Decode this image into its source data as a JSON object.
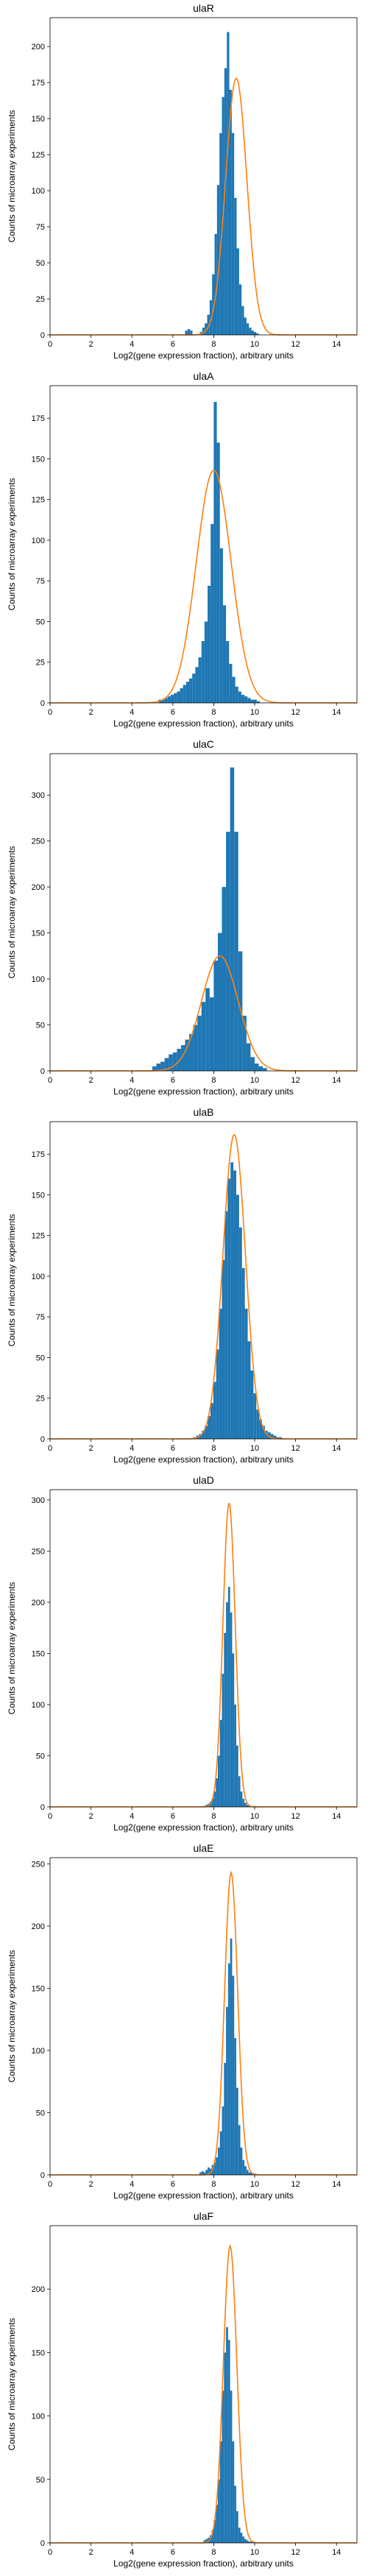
{
  "figure": {
    "bar_color": "#1f77b4",
    "fit_color": "#ff7f0e"
  },
  "chart_data": [
    {
      "type": "histogram",
      "title": "ulaR",
      "xlabel": "Log2(gene expression fraction), arbitrary units",
      "ylabel": "Counts of microarray experiments",
      "xlim": [
        0,
        15
      ],
      "ylim": [
        0,
        220
      ],
      "xticks": [
        0,
        2,
        4,
        6,
        8,
        10,
        12,
        14
      ],
      "yticks": [
        0,
        25,
        50,
        75,
        100,
        125,
        150,
        175,
        200
      ],
      "bins": {
        "start": 6.6,
        "width": 0.12,
        "counts": [
          3,
          4,
          3,
          0,
          0,
          0,
          2,
          5,
          8,
          14,
          24,
          42,
          70,
          104,
          140,
          165,
          185,
          210,
          170,
          140,
          95,
          60,
          35,
          20,
          12,
          8,
          5,
          3,
          2,
          1
        ]
      },
      "fit": {
        "mean": 9.1,
        "sd": 0.52,
        "peak": 178
      }
    },
    {
      "type": "histogram",
      "title": "ulaA",
      "xlabel": "Log2(gene expression fraction), arbitrary units",
      "ylabel": "Counts of microarray experiments",
      "xlim": [
        0,
        15
      ],
      "ylim": [
        0,
        195
      ],
      "xticks": [
        0,
        2,
        4,
        6,
        8,
        10,
        12,
        14
      ],
      "yticks": [
        0,
        25,
        50,
        75,
        100,
        125,
        150,
        175
      ],
      "bins": {
        "start": 5.3,
        "width": 0.15,
        "counts": [
          2,
          2,
          3,
          4,
          5,
          6,
          7,
          9,
          11,
          13,
          15,
          18,
          22,
          28,
          38,
          50,
          72,
          110,
          185,
          160,
          95,
          60,
          38,
          24,
          16,
          10,
          7,
          5,
          4,
          3,
          2,
          2,
          1
        ]
      },
      "fit": {
        "mean": 8.0,
        "sd": 0.85,
        "peak": 143
      }
    },
    {
      "type": "histogram",
      "title": "ulaC",
      "xlabel": "Log2(gene expression fraction), arbitrary units",
      "ylabel": "Counts of microarray experiments",
      "xlim": [
        0,
        15
      ],
      "ylim": [
        0,
        345
      ],
      "xticks": [
        0,
        2,
        4,
        6,
        8,
        10,
        12,
        14
      ],
      "yticks": [
        0,
        50,
        100,
        150,
        200,
        250,
        300
      ],
      "bins": {
        "start": 5.0,
        "width": 0.2,
        "counts": [
          5,
          8,
          10,
          14,
          18,
          20,
          24,
          28,
          34,
          40,
          50,
          60,
          75,
          90,
          80,
          120,
          150,
          200,
          260,
          330,
          260,
          130,
          60,
          30,
          15,
          8,
          5,
          3
        ]
      },
      "fit": {
        "mean": 8.3,
        "sd": 0.9,
        "peak": 125
      }
    },
    {
      "type": "histogram",
      "title": "ulaB",
      "xlabel": "Log2(gene expression fraction), arbitrary units",
      "ylabel": "Counts of microarray experiments",
      "xlim": [
        0,
        15
      ],
      "ylim": [
        0,
        195
      ],
      "xticks": [
        0,
        2,
        4,
        6,
        8,
        10,
        12,
        14
      ],
      "yticks": [
        0,
        25,
        50,
        75,
        100,
        125,
        150,
        175
      ],
      "bins": {
        "start": 7.0,
        "width": 0.14,
        "counts": [
          1,
          2,
          3,
          5,
          8,
          14,
          22,
          35,
          55,
          80,
          110,
          140,
          160,
          170,
          165,
          150,
          130,
          105,
          80,
          60,
          42,
          28,
          18,
          12,
          8,
          5,
          4,
          3,
          2,
          1,
          1
        ]
      },
      "fit": {
        "mean": 9.0,
        "sd": 0.55,
        "peak": 187
      }
    },
    {
      "type": "histogram",
      "title": "ulaD",
      "xlabel": "Log2(gene expression fraction), arbitrary units",
      "ylabel": "Counts of microarray experiments",
      "xlim": [
        0,
        15
      ],
      "ylim": [
        0,
        310
      ],
      "xticks": [
        0,
        2,
        4,
        6,
        8,
        10,
        12,
        14
      ],
      "yticks": [
        0,
        50,
        100,
        150,
        200,
        250,
        300
      ],
      "bins": {
        "start": 7.5,
        "width": 0.1,
        "counts": [
          1,
          2,
          3,
          5,
          8,
          15,
          28,
          50,
          85,
          130,
          170,
          200,
          215,
          190,
          150,
          100,
          60,
          30,
          15,
          8,
          4,
          2,
          1
        ]
      },
      "fit": {
        "mean": 8.75,
        "sd": 0.3,
        "peak": 297
      }
    },
    {
      "type": "histogram",
      "title": "ulaE",
      "xlabel": "Log2(gene expression fraction), arbitrary units",
      "ylabel": "Counts of microarray experiments",
      "xlim": [
        0,
        15
      ],
      "ylim": [
        0,
        255
      ],
      "xticks": [
        0,
        2,
        4,
        6,
        8,
        10,
        12,
        14
      ],
      "yticks": [
        0,
        50,
        100,
        150,
        200,
        250
      ],
      "bins": {
        "start": 7.3,
        "width": 0.1,
        "counts": [
          2,
          3,
          2,
          4,
          6,
          5,
          8,
          10,
          14,
          22,
          35,
          55,
          90,
          135,
          170,
          190,
          160,
          110,
          70,
          40,
          22,
          12,
          7,
          4,
          2,
          2,
          1,
          1
        ]
      },
      "fit": {
        "mean": 8.85,
        "sd": 0.32,
        "peak": 243
      }
    },
    {
      "type": "histogram",
      "title": "ulaF",
      "xlabel": "Log2(gene expression fraction), arbitrary units",
      "ylabel": "Counts of microarray experiments",
      "xlim": [
        0,
        15
      ],
      "ylim": [
        0,
        250
      ],
      "xticks": [
        0,
        2,
        4,
        6,
        8,
        10,
        12,
        14
      ],
      "yticks": [
        0,
        50,
        100,
        150,
        200
      ],
      "bins": {
        "start": 7.5,
        "width": 0.1,
        "counts": [
          2,
          3,
          4,
          6,
          10,
          18,
          30,
          50,
          80,
          120,
          150,
          170,
          160,
          120,
          80,
          45,
          25,
          12,
          8,
          5,
          3,
          2,
          1,
          1,
          1
        ]
      },
      "fit": {
        "mean": 8.8,
        "sd": 0.33,
        "peak": 234
      }
    }
  ]
}
